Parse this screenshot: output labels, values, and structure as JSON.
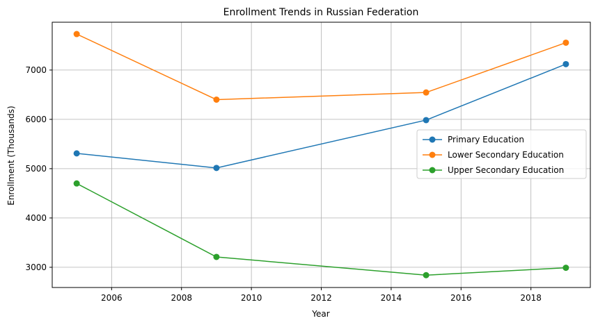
{
  "chart_data": {
    "type": "line",
    "title": "Enrollment Trends in Russian Federation",
    "xlabel": "Year",
    "ylabel": "Enrollment (Thousands)",
    "x": [
      2005,
      2009,
      2015,
      2019
    ],
    "xlim": [
      2004.3,
      2019.7
    ],
    "ylim": [
      2590,
      7970
    ],
    "xticks": [
      2006,
      2008,
      2010,
      2012,
      2014,
      2016,
      2018
    ],
    "yticks": [
      3000,
      4000,
      5000,
      6000,
      7000
    ],
    "grid": true,
    "legend_position": "center-right",
    "series": [
      {
        "name": "Primary Education",
        "color": "#1f77b4",
        "values": [
          5310,
          5015,
          5985,
          7120
        ]
      },
      {
        "name": "Lower Secondary Education",
        "color": "#ff7f0e",
        "values": [
          7730,
          6400,
          6545,
          7555
        ]
      },
      {
        "name": "Upper Secondary Education",
        "color": "#2ca02c",
        "values": [
          4700,
          3210,
          2840,
          2990
        ]
      }
    ]
  }
}
